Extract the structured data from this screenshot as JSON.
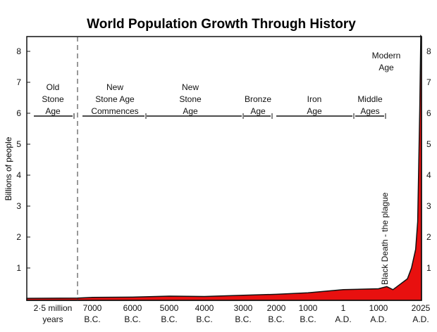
{
  "chart_data": {
    "type": "area",
    "title": "World Population Growth Through History",
    "ylabel": "Billions of people",
    "xlabel": "",
    "ylim": [
      0,
      8.5
    ],
    "yticks": [
      1,
      2,
      3,
      4,
      5,
      6,
      7,
      8
    ],
    "fill_color": "#e8100f",
    "grid": false,
    "xticks": [
      {
        "year": -2500000,
        "label": [
          "2·5 million",
          "years"
        ]
      },
      {
        "year": -7000,
        "label": [
          "7000",
          "B.C."
        ]
      },
      {
        "year": -6000,
        "label": [
          "6000",
          "B.C."
        ]
      },
      {
        "year": -5000,
        "label": [
          "5000",
          "B.C."
        ]
      },
      {
        "year": -4000,
        "label": [
          "4000",
          "B.C."
        ]
      },
      {
        "year": -3000,
        "label": [
          "3000",
          "B.C."
        ]
      },
      {
        "year": -2000,
        "label": [
          "2000",
          "B.C."
        ]
      },
      {
        "year": -1000,
        "label": [
          "1000",
          "B.C."
        ]
      },
      {
        "year": 1,
        "label": [
          "1",
          "A.D."
        ]
      },
      {
        "year": 1000,
        "label": [
          "1000",
          "A.D."
        ]
      },
      {
        "year": 2025,
        "label": [
          "2025",
          "A.D."
        ]
      }
    ],
    "eras": [
      {
        "label": [
          "Old",
          "Stone",
          "Age"
        ]
      },
      {
        "label": [
          "New",
          "Stone Age",
          "Commences"
        ]
      },
      {
        "label": [
          "New",
          "Stone",
          "Age"
        ]
      },
      {
        "label": [
          "Bronze",
          "Age"
        ]
      },
      {
        "label": [
          "Iron",
          "Age"
        ]
      },
      {
        "label": [
          "Middle",
          "Ages"
        ]
      },
      {
        "label": [
          "Modern",
          "Age"
        ]
      }
    ],
    "annotation": "Black Death - the plague",
    "x": [
      -2500000,
      -8000,
      -7000,
      -6000,
      -5000,
      -4000,
      -3000,
      -2000,
      -1000,
      1,
      1000,
      1200,
      1350,
      1500,
      1700,
      1800,
      1900,
      1950,
      2000,
      2025
    ],
    "y": [
      0.02,
      0.03,
      0.05,
      0.06,
      0.09,
      0.08,
      0.12,
      0.15,
      0.2,
      0.3,
      0.33,
      0.4,
      0.3,
      0.45,
      0.65,
      1.0,
      1.6,
      2.5,
      6.1,
      8.5
    ]
  }
}
